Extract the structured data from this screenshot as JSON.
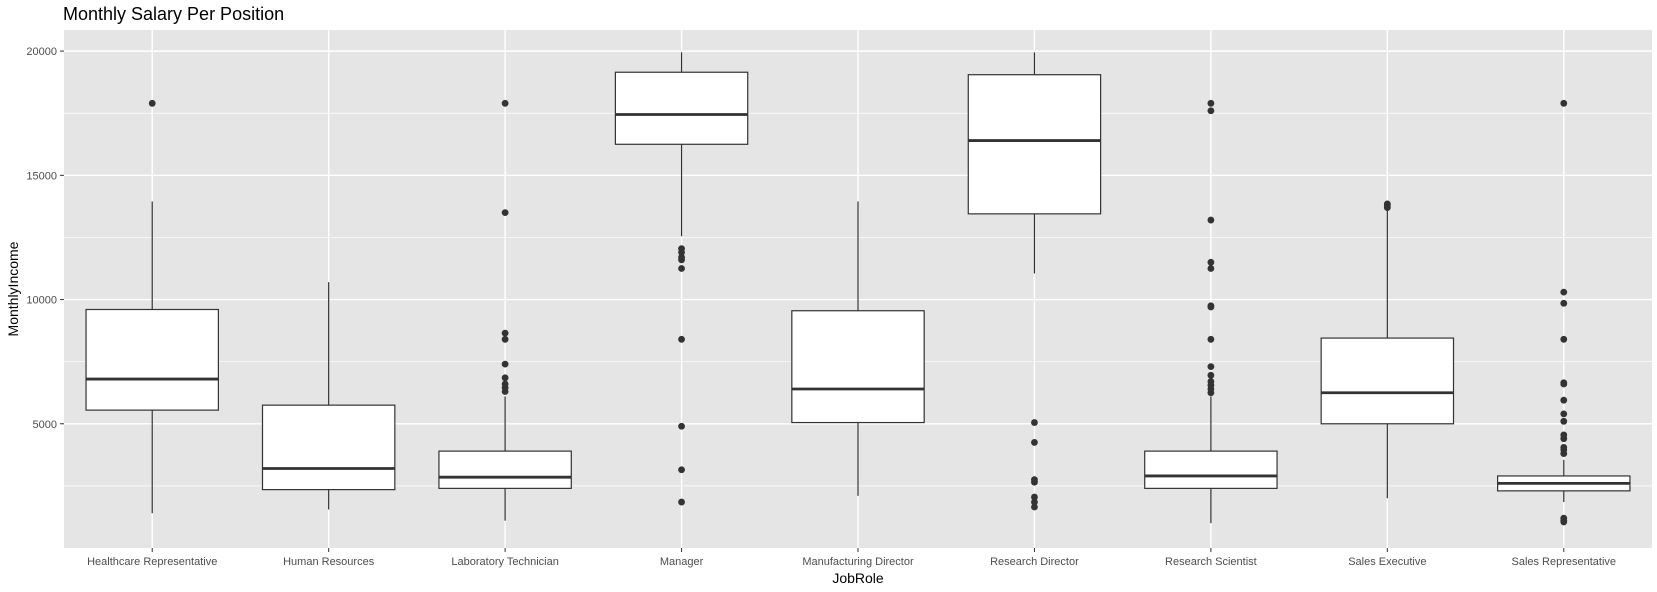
{
  "chart_data": {
    "type": "box",
    "title": "Monthly Salary Per Position",
    "xlabel": "JobRole",
    "ylabel": "MonthlyIncome",
    "ylim": [
      0,
      20850
    ],
    "yticks": [
      5000,
      10000,
      15000,
      20000
    ],
    "grid": true,
    "colors": {
      "panel": "#e5e5e5",
      "grid": "#ffffff",
      "box_fill": "#ffffff",
      "stroke": "#333333",
      "outlier": "#333333"
    },
    "categories": [
      "Healthcare Representative",
      "Human Resources",
      "Laboratory Technician",
      "Manager",
      "Manufacturing Director",
      "Research Director",
      "Research Scientist",
      "Sales Executive",
      "Sales Representative"
    ],
    "boxes": [
      {
        "category": "Healthcare Representative",
        "whisker_low": 1400,
        "q1": 5550,
        "median": 6800,
        "q3": 9600,
        "whisker_high": 13950,
        "outliers": [
          17900
        ]
      },
      {
        "category": "Human Resources",
        "whisker_low": 1550,
        "q1": 2350,
        "median": 3200,
        "q3": 5750,
        "whisker_high": 10700,
        "outliers": []
      },
      {
        "category": "Laboratory Technician",
        "whisker_low": 1100,
        "q1": 2400,
        "median": 2850,
        "q3": 3900,
        "whisker_high": 6100,
        "outliers": [
          6300,
          6450,
          6600,
          6850,
          7400,
          8400,
          8650,
          13500,
          17900
        ]
      },
      {
        "category": "Manager",
        "whisker_low": 12550,
        "q1": 16250,
        "median": 17450,
        "q3": 19150,
        "whisker_high": 19950,
        "outliers": [
          1850,
          3150,
          4900,
          8400,
          11250,
          11600,
          11700,
          11900,
          12050
        ]
      },
      {
        "category": "Manufacturing Director",
        "whisker_low": 2100,
        "q1": 5050,
        "median": 6400,
        "q3": 9550,
        "whisker_high": 13950,
        "outliers": []
      },
      {
        "category": "Research Director",
        "whisker_low": 11050,
        "q1": 13450,
        "median": 16400,
        "q3": 19050,
        "whisker_high": 19950,
        "outliers": [
          1650,
          1850,
          2050,
          2650,
          2750,
          4250,
          5050
        ]
      },
      {
        "category": "Research Scientist",
        "whisker_low": 1000,
        "q1": 2400,
        "median": 2900,
        "q3": 3900,
        "whisker_high": 6100,
        "outliers": [
          6250,
          6400,
          6550,
          6700,
          6950,
          7300,
          8400,
          9700,
          9750,
          11250,
          11500,
          13200,
          17600,
          17900
        ]
      },
      {
        "category": "Sales Executive",
        "whisker_low": 2000,
        "q1": 5000,
        "median": 6250,
        "q3": 8450,
        "whisker_high": 13600,
        "outliers": [
          13700,
          13800,
          13850
        ]
      },
      {
        "category": "Sales Representative",
        "whisker_low": 1850,
        "q1": 2300,
        "median": 2600,
        "q3": 2900,
        "whisker_high": 3550,
        "outliers": [
          1050,
          1100,
          1200,
          3800,
          3950,
          4050,
          4400,
          4550,
          5100,
          5400,
          5950,
          6600,
          6650,
          8400,
          9850,
          10300,
          17900
        ]
      }
    ]
  }
}
